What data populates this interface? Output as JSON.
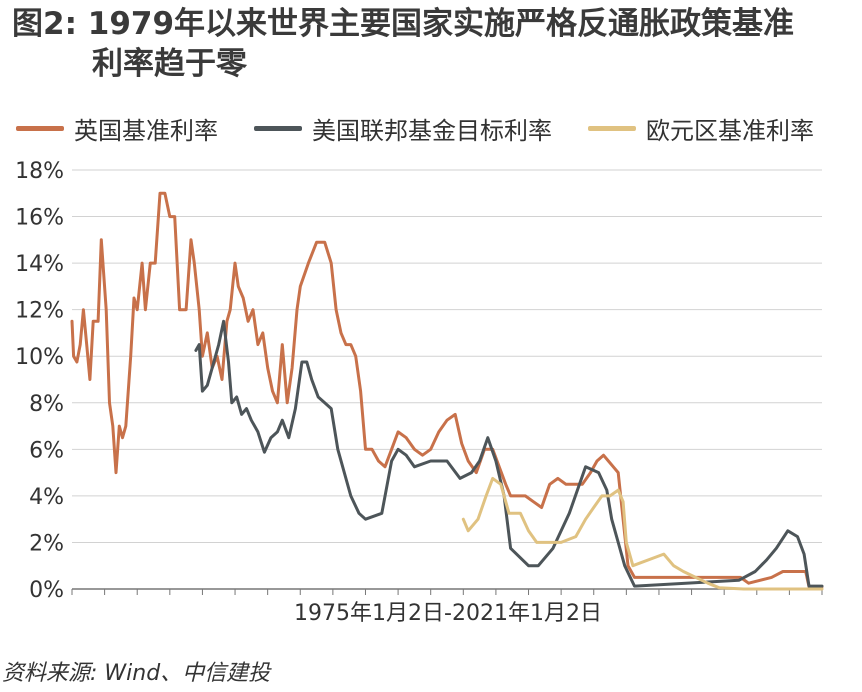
{
  "title": {
    "line1": "图2: 1979年以来世界主要国家实施严格反通胀政策基准",
    "line2": "利率趋于零"
  },
  "source": "资料来源: Wind、中信建投",
  "chart_data": {
    "type": "line",
    "x_start": 1975.0,
    "x_end": 2021.0,
    "xlabel": "1975年1月2日-2021年1月2日",
    "ylabel": "",
    "ylim": [
      0,
      18
    ],
    "yticks": [
      "0%",
      "2%",
      "4%",
      "6%",
      "8%",
      "10%",
      "12%",
      "14%",
      "16%",
      "18%"
    ],
    "grid": true,
    "legend_position": "top",
    "series": [
      {
        "name": "英国基准利率",
        "color": "#c8714a",
        "x": [
          1975.0,
          1975.1,
          1975.3,
          1975.5,
          1975.7,
          1975.9,
          1976.1,
          1976.3,
          1976.6,
          1976.8,
          1977.1,
          1977.3,
          1977.5,
          1977.7,
          1977.9,
          1978.1,
          1978.3,
          1978.6,
          1978.8,
          1979.0,
          1979.3,
          1979.5,
          1979.8,
          1980.1,
          1980.4,
          1980.7,
          1981.0,
          1981.3,
          1981.6,
          1981.8,
          1982.0,
          1982.3,
          1982.5,
          1982.8,
          1983.0,
          1983.3,
          1983.6,
          1983.9,
          1984.2,
          1984.5,
          1984.7,
          1985.0,
          1985.2,
          1985.5,
          1985.8,
          1986.1,
          1986.4,
          1986.7,
          1987.0,
          1987.3,
          1987.6,
          1987.9,
          1988.2,
          1988.5,
          1988.8,
          1989.0,
          1989.5,
          1990.0,
          1990.5,
          1990.9,
          1991.2,
          1991.5,
          1991.8,
          1992.1,
          1992.4,
          1992.7,
          1993.0,
          1993.4,
          1993.8,
          1994.2,
          1994.6,
          1995.0,
          1995.5,
          1996.0,
          1996.5,
          1997.0,
          1997.5,
          1998.0,
          1998.5,
          1998.9,
          1999.3,
          1999.8,
          2000.3,
          2000.8,
          2001.2,
          2001.6,
          2001.9,
          2002.3,
          2002.8,
          2003.3,
          2003.8,
          2004.3,
          2004.8,
          2005.3,
          2005.8,
          2006.3,
          2006.8,
          2007.2,
          2007.6,
          2007.9,
          2008.2,
          2008.5,
          2008.8,
          2009.1,
          2009.5,
          2010.5,
          2012.0,
          2014.0,
          2016.0,
          2016.5,
          2017.9,
          2018.6,
          2019.5,
          2020.0,
          2020.2,
          2020.5,
          2021.0
        ],
        "values": [
          11.5,
          10.0,
          9.75,
          10.5,
          12.0,
          10.5,
          9.0,
          11.5,
          11.5,
          15.0,
          12.0,
          8.0,
          7.0,
          5.0,
          7.0,
          6.5,
          7.0,
          10.0,
          12.5,
          12.0,
          14.0,
          12.0,
          14.0,
          14.0,
          17.0,
          17.0,
          16.0,
          16.0,
          12.0,
          12.0,
          12.0,
          15.0,
          14.0,
          12.0,
          10.0,
          11.0,
          9.5,
          10.0,
          9.0,
          11.5,
          12.0,
          14.0,
          13.0,
          12.5,
          11.5,
          12.0,
          10.5,
          11.0,
          9.5,
          8.5,
          8.0,
          10.5,
          8.0,
          9.5,
          12.0,
          13.0,
          14.0,
          14.9,
          14.9,
          14.0,
          12.0,
          11.0,
          10.5,
          10.5,
          10.0,
          8.5,
          6.0,
          6.0,
          5.5,
          5.25,
          6.0,
          6.75,
          6.5,
          6.0,
          5.75,
          6.0,
          6.75,
          7.25,
          7.5,
          6.25,
          5.5,
          5.0,
          6.0,
          6.0,
          5.25,
          4.5,
          4.0,
          4.0,
          4.0,
          3.75,
          3.5,
          4.5,
          4.75,
          4.5,
          4.5,
          4.5,
          5.0,
          5.5,
          5.75,
          5.5,
          5.25,
          5.0,
          3.0,
          1.0,
          0.5,
          0.5,
          0.5,
          0.5,
          0.5,
          0.25,
          0.5,
          0.75,
          0.75,
          0.75,
          0.1,
          0.1,
          0.1
        ]
      },
      {
        "name": "美国联邦基金目标利率",
        "color": "#4d5559",
        "x": [
          1982.6,
          1982.8,
          1983.0,
          1983.3,
          1983.6,
          1984.0,
          1984.3,
          1984.6,
          1984.8,
          1985.1,
          1985.4,
          1985.7,
          1986.0,
          1986.4,
          1986.8,
          1987.2,
          1987.6,
          1987.9,
          1988.3,
          1988.7,
          1989.1,
          1989.4,
          1989.7,
          1990.1,
          1990.5,
          1990.9,
          1991.3,
          1991.7,
          1992.1,
          1992.6,
          1993.0,
          1994.0,
          1994.6,
          1995.0,
          1995.5,
          1996.0,
          1997.0,
          1998.0,
          1998.8,
          1999.5,
          2000.0,
          2000.5,
          2001.0,
          2001.5,
          2001.9,
          2003.0,
          2003.6,
          2004.5,
          2005.5,
          2006.5,
          2007.3,
          2007.8,
          2008.1,
          2008.5,
          2008.9,
          2009.5,
          2015.9,
          2016.9,
          2017.6,
          2018.2,
          2018.9,
          2019.5,
          2019.9,
          2020.2,
          2021.0
        ],
        "values": [
          10.25,
          10.5,
          8.5,
          8.75,
          9.5,
          10.5,
          11.5,
          9.75,
          8.0,
          8.25,
          7.5,
          7.75,
          7.25,
          6.75,
          5.875,
          6.5,
          6.75,
          7.25,
          6.5,
          7.75,
          9.75,
          9.75,
          9.0,
          8.25,
          8.0,
          7.75,
          6.0,
          5.0,
          4.0,
          3.25,
          3.0,
          3.25,
          5.5,
          6.0,
          5.75,
          5.25,
          5.5,
          5.5,
          4.75,
          5.0,
          5.5,
          6.5,
          5.5,
          4.0,
          1.75,
          1.0,
          1.0,
          1.75,
          3.25,
          5.25,
          5.0,
          4.25,
          3.0,
          2.0,
          1.0,
          0.125,
          0.375,
          0.75,
          1.25,
          1.75,
          2.5,
          2.25,
          1.5,
          0.125,
          0.125
        ]
      },
      {
        "name": "欧元区基准利率",
        "color": "#e0c281",
        "x": [
          1999.0,
          1999.3,
          1999.9,
          2000.4,
          2000.8,
          2001.3,
          2001.8,
          2002.5,
          2003.0,
          2003.5,
          2004.0,
          2005.0,
          2005.9,
          2006.5,
          2007.0,
          2007.5,
          2008.0,
          2008.5,
          2008.8,
          2009.0,
          2009.4,
          2011.3,
          2011.9,
          2012.5,
          2014.0,
          2014.7,
          2016.2,
          2021.0
        ],
        "values": [
          3.0,
          2.5,
          3.0,
          4.0,
          4.75,
          4.5,
          3.25,
          3.25,
          2.5,
          2.0,
          2.0,
          2.0,
          2.25,
          3.0,
          3.5,
          4.0,
          4.0,
          4.25,
          3.75,
          2.0,
          1.0,
          1.5,
          1.0,
          0.75,
          0.25,
          0.05,
          0.0,
          0.0
        ]
      }
    ]
  }
}
